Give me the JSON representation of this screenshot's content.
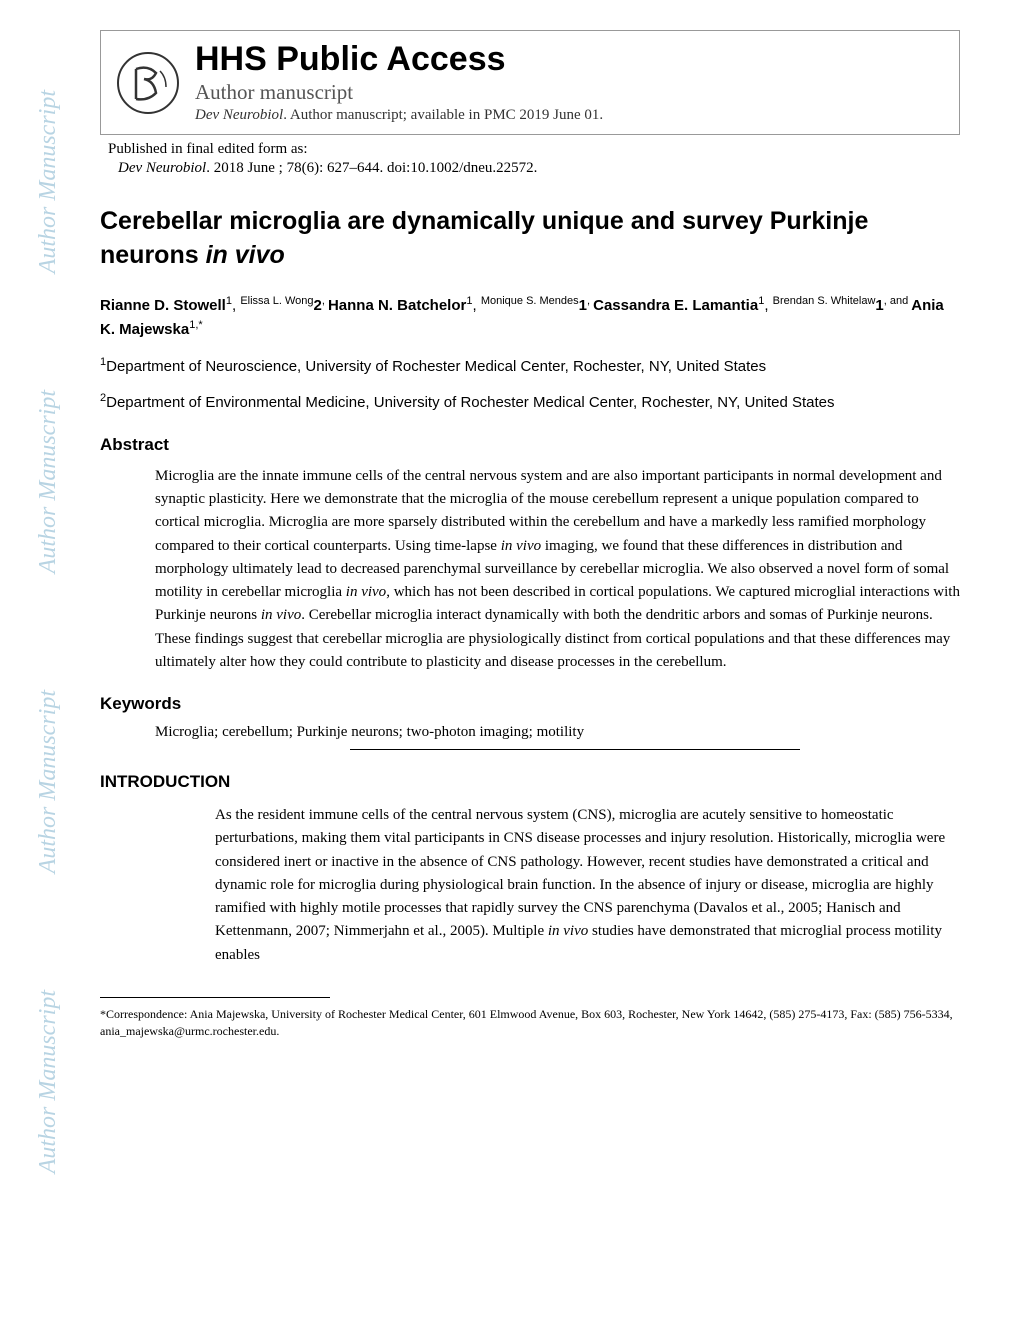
{
  "watermark_text": "Author Manuscript",
  "header": {
    "hhs_title": "HHS Public Access",
    "author_manuscript": "Author manuscript",
    "journal_abbrev": "Dev Neurobiol",
    "availability": ". Author manuscript; available in PMC 2019 June 01."
  },
  "published_label": "Published in final edited form as:",
  "citation": {
    "journal": "Dev Neurobiol",
    "rest": ". 2018 June ; 78(6): 627–644. doi:10.1002/dneu.22572."
  },
  "article_title_part1": "Cerebellar microglia are dynamically unique and survey Purkinje neurons ",
  "article_title_italic": "in vivo",
  "authors_html": "Rianne D. Stowell|1|, |Elissa L. Wong|2|, |Hanna N. Batchelor|1|, |Monique S. Mendes|1|, |Cassandra E. Lamantia|1|, |Brendan S. Whitelaw|1|, and |Ania K. Majewska|1,*",
  "affiliations": [
    {
      "num": "1",
      "text": "Department of Neuroscience, University of Rochester Medical Center, Rochester, NY, United States"
    },
    {
      "num": "2",
      "text": "Department of Environmental Medicine, University of Rochester Medical Center, Rochester, NY, United States"
    }
  ],
  "abstract_heading": "Abstract",
  "abstract_body": "Microglia are the innate immune cells of the central nervous system and are also important participants in normal development and synaptic plasticity. Here we demonstrate that the microglia of the mouse cerebellum represent a unique population compared to cortical microglia. Microglia are more sparsely distributed within the cerebellum and have a markedly less ramified morphology compared to their cortical counterparts. Using time-lapse in vivo imaging, we found that these differences in distribution and morphology ultimately lead to decreased parenchymal surveillance by cerebellar microglia. We also observed a novel form of somal motility in cerebellar microglia in vivo, which has not been described in cortical populations. We captured microglial interactions with Purkinje neurons in vivo. Cerebellar microglia interact dynamically with both the dendritic arbors and somas of Purkinje neurons. These findings suggest that cerebellar microglia are physiologically distinct from cortical populations and that these differences may ultimately alter how they could contribute to plasticity and disease processes in the cerebellum.",
  "keywords_heading": "Keywords",
  "keywords_body": "Microglia; cerebellum; Purkinje neurons; two-photon imaging; motility",
  "intro_heading": "INTRODUCTION",
  "intro_body": "As the resident immune cells of the central nervous system (CNS), microglia are acutely sensitive to homeostatic perturbations, making them vital participants in CNS disease processes and injury resolution. Historically, microglia were considered inert or inactive in the absence of CNS pathology. However, recent studies have demonstrated a critical and dynamic role for microglia during physiological brain function. In the absence of injury or disease, microglia are highly ramified with highly motile processes that rapidly survey the CNS parenchyma (Davalos et al., 2005; Hanisch and Kettenmann, 2007; Nimmerjahn et al., 2005). Multiple in vivo studies have demonstrated that microglial process motility enables",
  "footnote": "*Correspondence: Ania Majewska, University of Rochester Medical Center, 601 Elmwood Avenue, Box 603, Rochester, New York 14642, (585) 275-4173, Fax: (585) 756-5334, ania_majewska@urmc.rochester.edu.",
  "colors": {
    "watermark": "#b8d4e3",
    "text": "#000000",
    "border": "#999999"
  },
  "fonts": {
    "sans": "Arial, Helvetica, sans-serif",
    "serif": "Georgia, 'Times New Roman', serif"
  }
}
